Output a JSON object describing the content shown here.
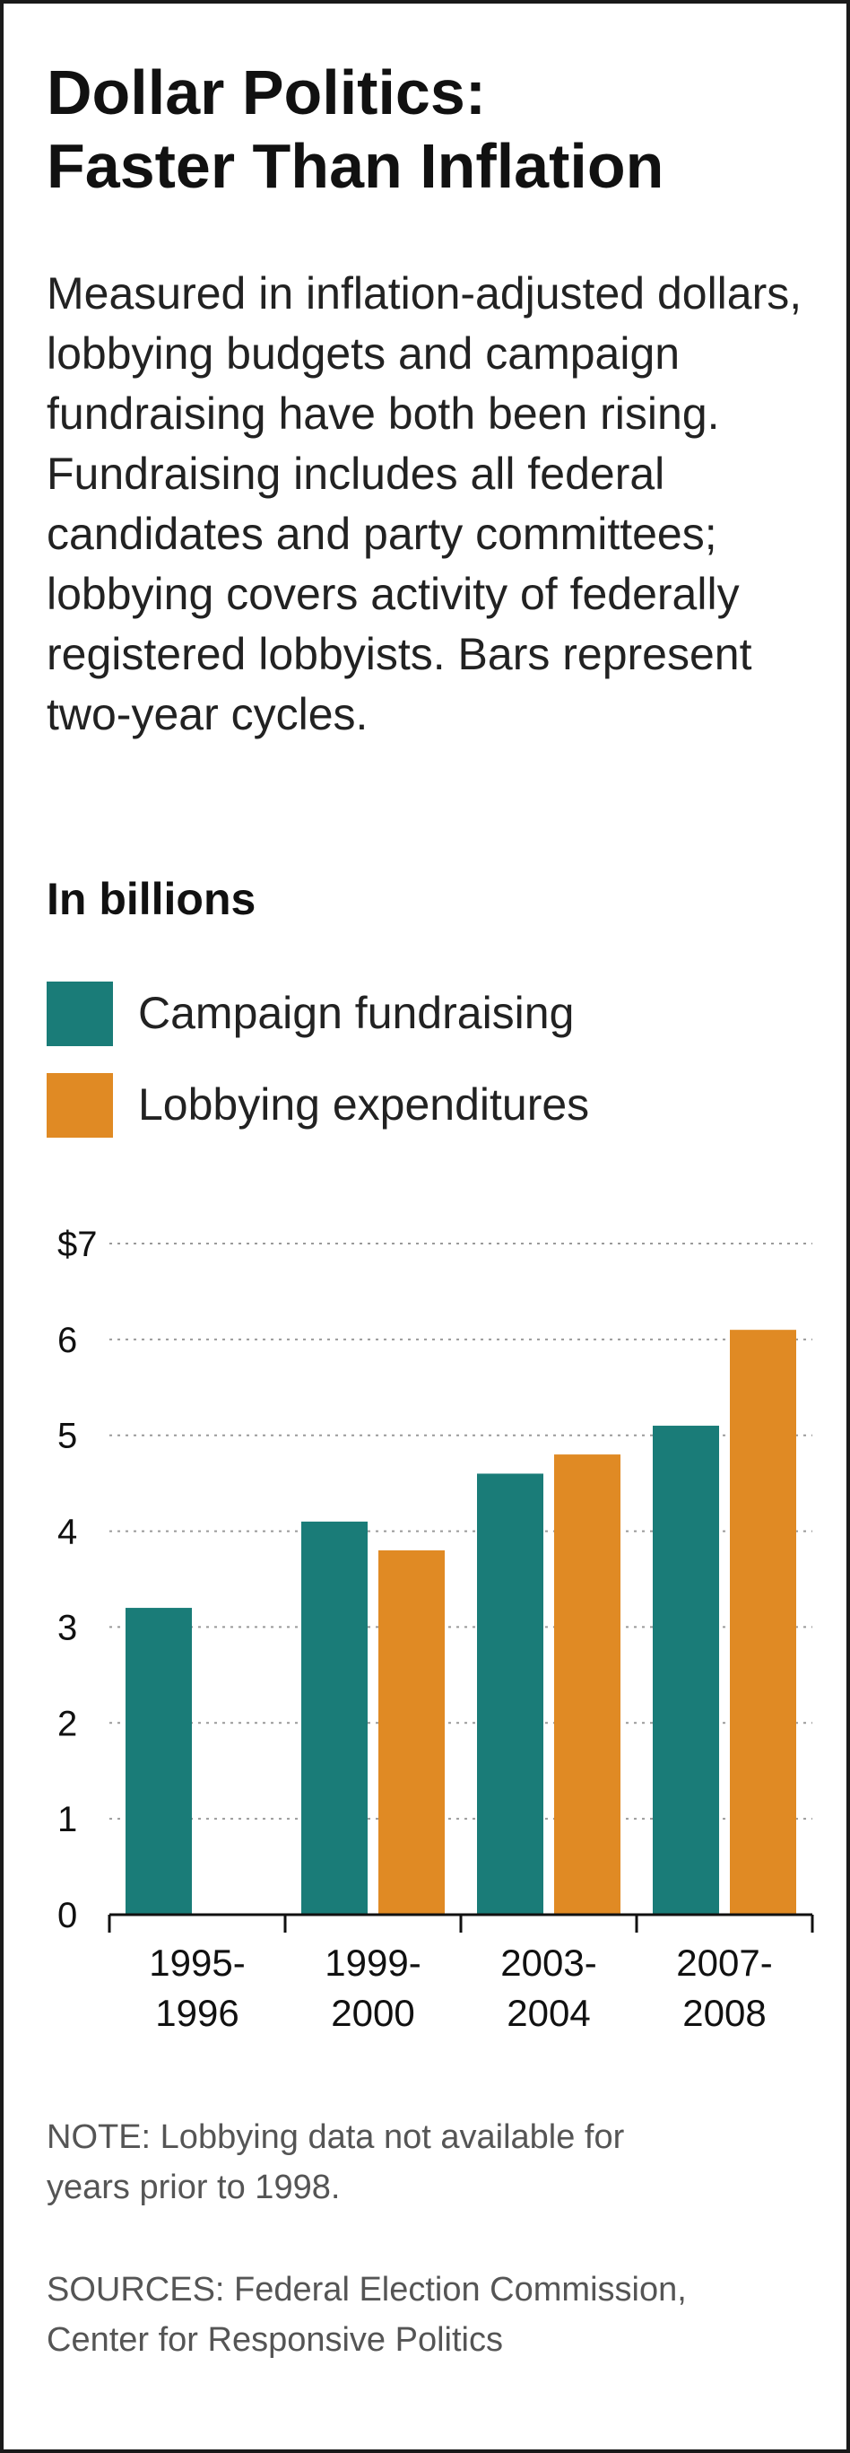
{
  "title_line1": "Dollar Politics:",
  "title_line2": "Faster Than Inflation",
  "description": "Measured in inflation-adjusted dollars, lobbying budgets and campaign fundraising have both been rising. Fundraising includes all federal candidates and party committees; lobbying covers activity of federally registered lobbyists. Bars represent two-year cycles.",
  "note_line1": "NOTE: Lobbying data not available for",
  "note_line2": "years prior to 1998.",
  "sources_line1": "SOURCES: Federal Election Commission,",
  "sources_line2": "Center for Responsive Politics",
  "colors": {
    "campaign": "#1a7c78",
    "lobbying": "#e08a24"
  },
  "chart_data": {
    "type": "bar",
    "title": "In billions",
    "categories": [
      {
        "line1": "1995-",
        "line2": "1996"
      },
      {
        "line1": "1999-",
        "line2": "2000"
      },
      {
        "line1": "2003-",
        "line2": "2004"
      },
      {
        "line1": "2007-",
        "line2": "2008"
      }
    ],
    "series": [
      {
        "name": "Campaign fundraising",
        "values": [
          3.2,
          4.1,
          4.6,
          5.1
        ]
      },
      {
        "name": "Lobbying expenditures",
        "values": [
          null,
          3.8,
          4.8,
          6.1
        ]
      }
    ],
    "y_ticks": [
      "0",
      "1",
      "2",
      "3",
      "4",
      "5",
      "6",
      "$7"
    ],
    "ylim": [
      0,
      7
    ],
    "grid": true,
    "legend_position": "top-left"
  }
}
